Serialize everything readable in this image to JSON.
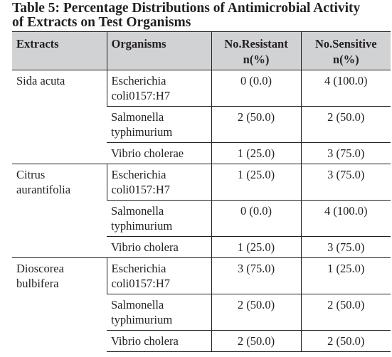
{
  "caption": {
    "line1": "Table 5: Percentage Distributions of Antimicrobial Activity",
    "line2": "of Extracts on Test Organisms"
  },
  "headers": {
    "extracts": "Extracts",
    "organisms": "Organisms",
    "resistant_line1": "No.Resistant",
    "resistant_line2": "n(%)",
    "sensitive_line1": "No.Sensitive",
    "sensitive_line2": "n(%)"
  },
  "groups": [
    {
      "extract_line1": "Sida acuta",
      "extract_line2": "",
      "rows": [
        {
          "org_line1": "Escherichia",
          "org_line2": "coli0157:H7",
          "resistant": "0 (0.0)",
          "sensitive": "4 (100.0)"
        },
        {
          "org_line1": "Salmonella",
          "org_line2": "typhimurium",
          "resistant": "2 (50.0)",
          "sensitive": "2 (50.0)"
        },
        {
          "org_line1": "Vibrio cholerae",
          "org_line2": "",
          "resistant": "1 (25.0)",
          "sensitive": "3 (75.0)"
        }
      ]
    },
    {
      "extract_line1": "Citrus",
      "extract_line2": "aurantifolia",
      "rows": [
        {
          "org_line1": "Escherichia",
          "org_line2": "coli0157:H7",
          "resistant": "1 (25.0)",
          "sensitive": "3 (75.0)"
        },
        {
          "org_line1": "Salmonella",
          "org_line2": "typhimurium",
          "resistant": "0 (0.0)",
          "sensitive": "4 (100.0)"
        },
        {
          "org_line1": "Vibrio cholera",
          "org_line2": "",
          "resistant": "1 (25.0)",
          "sensitive": "3 (75.0)"
        }
      ]
    },
    {
      "extract_line1": "Dioscorea",
      "extract_line2": "bulbifera",
      "rows": [
        {
          "org_line1": "Escherichia",
          "org_line2": "coli0157:H7",
          "resistant": "3 (75.0)",
          "sensitive": "1 (25.0)"
        },
        {
          "org_line1": "Salmonella",
          "org_line2": "typhimurium",
          "resistant": "2 (50.0)",
          "sensitive": "2 (50.0)"
        },
        {
          "org_line1": "Vibrio cholera",
          "org_line2": "",
          "resistant": "2 (50.0)",
          "sensitive": "2 (50.0)"
        }
      ]
    }
  ]
}
